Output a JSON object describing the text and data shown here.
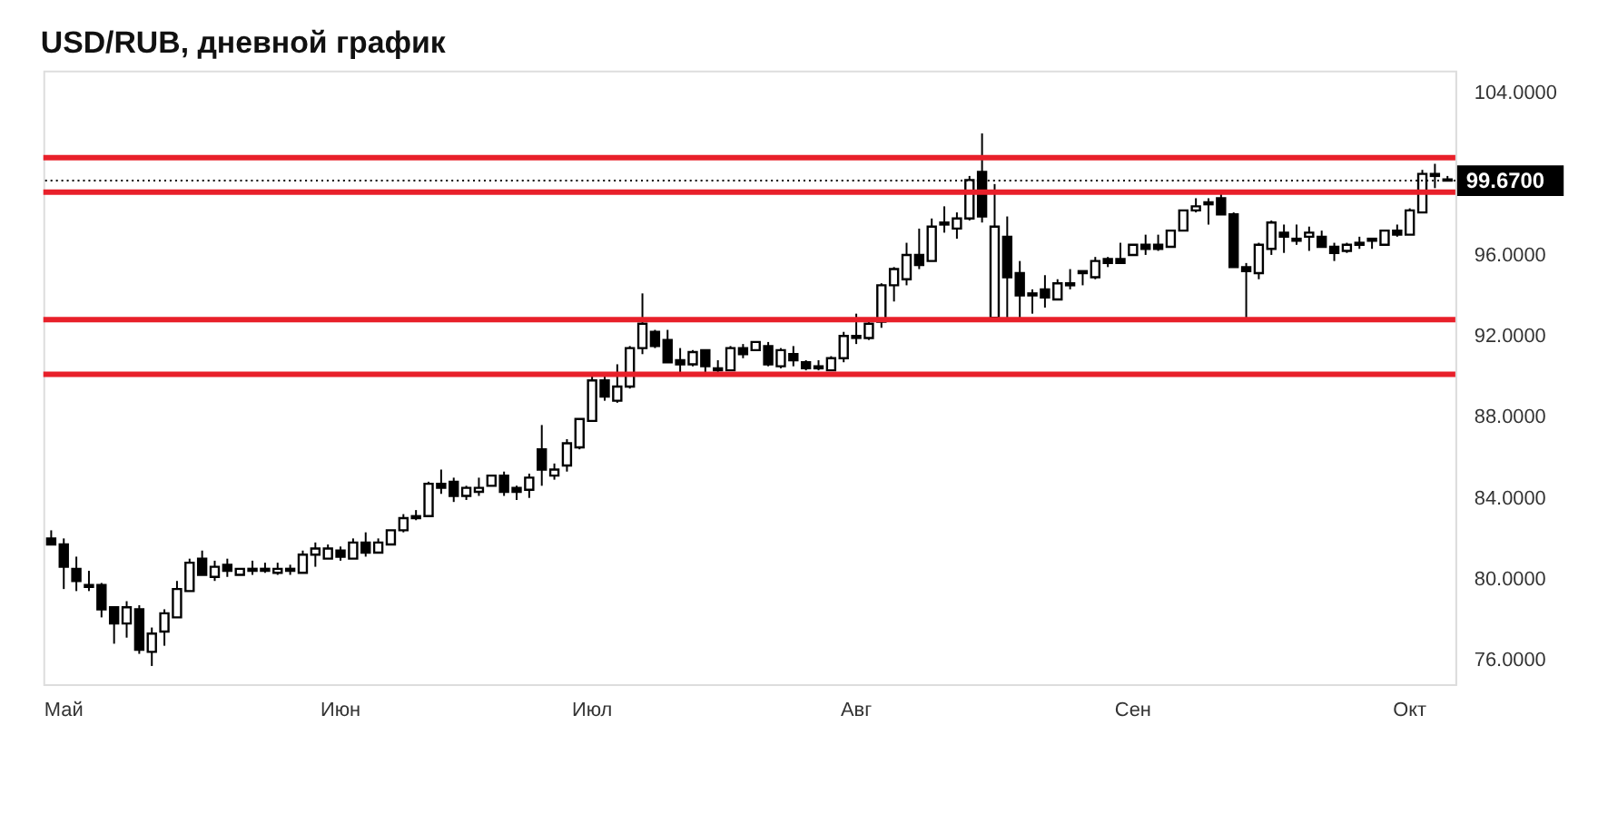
{
  "chart_data": {
    "type": "candlestick",
    "title": "USD/RUB, дневной график",
    "categories": [
      null,
      "Май",
      null,
      null,
      null,
      null,
      null,
      null,
      null,
      null,
      null,
      null,
      null,
      null,
      null,
      null,
      null,
      null,
      null,
      null,
      null,
      null,
      null,
      "Июн",
      null,
      null,
      null,
      null,
      null,
      null,
      null,
      null,
      null,
      null,
      null,
      null,
      null,
      null,
      null,
      null,
      null,
      null,
      null,
      "Июл",
      null,
      null,
      null,
      null,
      null,
      null,
      null,
      null,
      null,
      null,
      null,
      null,
      null,
      null,
      null,
      null,
      null,
      null,
      null,
      null,
      "Авг",
      null,
      null,
      null,
      null,
      null,
      null,
      null,
      null,
      null,
      null,
      null,
      null,
      null,
      null,
      null,
      null,
      null,
      null,
      null,
      null,
      null,
      "Сен",
      null,
      null,
      null,
      null,
      null,
      null,
      null,
      null,
      null,
      null,
      null,
      null,
      null,
      null,
      null,
      null,
      null,
      null,
      null,
      null,
      null,
      "Окт",
      null,
      null,
      null
    ],
    "series": [
      {
        "color": "#000000",
        "ohlc": [
          [
            82.0,
            82.4,
            81.7,
            81.7
          ],
          [
            81.7,
            82.0,
            79.5,
            80.6
          ],
          [
            80.5,
            81.1,
            79.4,
            79.9
          ],
          [
            79.7,
            80.4,
            79.4,
            79.6
          ],
          [
            79.7,
            79.8,
            78.1,
            78.5
          ],
          [
            78.6,
            78.6,
            76.8,
            77.8
          ],
          [
            77.8,
            78.9,
            77.1,
            78.6
          ],
          [
            78.5,
            78.7,
            76.3,
            76.5
          ],
          [
            76.4,
            77.6,
            75.7,
            77.3
          ],
          [
            77.4,
            78.5,
            76.7,
            78.3
          ],
          [
            78.1,
            79.9,
            78.1,
            79.5
          ],
          [
            79.4,
            81.0,
            79.4,
            80.8
          ],
          [
            81.0,
            81.4,
            80.2,
            80.2
          ],
          [
            80.1,
            80.9,
            79.9,
            80.6
          ],
          [
            80.7,
            81.0,
            80.1,
            80.4
          ],
          [
            80.2,
            80.5,
            80.2,
            80.5
          ],
          [
            80.4,
            80.9,
            80.2,
            80.5
          ],
          [
            80.4,
            80.8,
            80.3,
            80.5
          ],
          [
            80.3,
            80.8,
            80.2,
            80.5
          ],
          [
            80.5,
            80.7,
            80.2,
            80.4
          ],
          [
            80.3,
            81.4,
            80.3,
            81.2
          ],
          [
            81.2,
            81.8,
            80.6,
            81.5
          ],
          [
            81.0,
            81.7,
            81.0,
            81.5
          ],
          [
            81.4,
            81.6,
            80.9,
            81.1
          ],
          [
            81.0,
            82.0,
            81.0,
            81.8
          ],
          [
            81.8,
            82.3,
            81.1,
            81.3
          ],
          [
            81.3,
            82.0,
            81.3,
            81.8
          ],
          [
            81.7,
            82.4,
            81.7,
            82.4
          ],
          [
            82.4,
            83.2,
            82.3,
            83.0
          ],
          [
            83.0,
            83.4,
            82.9,
            83.1
          ],
          [
            83.1,
            84.8,
            83.1,
            84.7
          ],
          [
            84.7,
            85.4,
            84.2,
            84.5
          ],
          [
            84.8,
            85.0,
            83.8,
            84.1
          ],
          [
            84.1,
            84.6,
            83.9,
            84.5
          ],
          [
            84.3,
            85.0,
            84.1,
            84.5
          ],
          [
            84.6,
            85.1,
            84.6,
            85.1
          ],
          [
            85.1,
            85.3,
            84.1,
            84.3
          ],
          [
            84.5,
            84.6,
            83.9,
            84.3
          ],
          [
            84.4,
            85.2,
            84.0,
            85.0
          ],
          [
            86.4,
            87.6,
            84.6,
            85.4
          ],
          [
            85.1,
            85.7,
            84.9,
            85.4
          ],
          [
            85.6,
            86.9,
            85.3,
            86.7
          ],
          [
            86.5,
            87.9,
            86.4,
            87.9
          ],
          [
            87.8,
            90.1,
            87.8,
            89.8
          ],
          [
            89.8,
            90.0,
            88.8,
            89.0
          ],
          [
            88.8,
            90.6,
            88.7,
            89.5
          ],
          [
            89.5,
            91.5,
            89.4,
            91.4
          ],
          [
            91.4,
            94.1,
            91.1,
            92.6
          ],
          [
            92.2,
            92.3,
            91.4,
            91.5
          ],
          [
            91.8,
            92.3,
            90.7,
            90.7
          ],
          [
            90.8,
            91.4,
            90.2,
            90.6
          ],
          [
            90.6,
            91.3,
            90.5,
            91.2
          ],
          [
            91.3,
            91.3,
            90.1,
            90.5
          ],
          [
            90.3,
            90.8,
            90.2,
            90.4
          ],
          [
            90.3,
            91.5,
            90.3,
            91.4
          ],
          [
            91.4,
            91.6,
            90.9,
            91.1
          ],
          [
            91.3,
            91.7,
            91.3,
            91.7
          ],
          [
            91.5,
            91.7,
            90.5,
            90.6
          ],
          [
            90.5,
            91.4,
            90.4,
            91.3
          ],
          [
            91.1,
            91.5,
            90.5,
            90.8
          ],
          [
            90.7,
            90.8,
            90.3,
            90.4
          ],
          [
            90.5,
            90.8,
            90.3,
            90.4
          ],
          [
            90.3,
            91.0,
            90.3,
            90.9
          ],
          [
            90.9,
            92.2,
            90.7,
            92.0
          ],
          [
            92.0,
            93.1,
            91.6,
            91.9
          ],
          [
            91.9,
            92.8,
            91.8,
            92.6
          ],
          [
            92.7,
            94.6,
            92.4,
            94.5
          ],
          [
            94.5,
            95.4,
            93.7,
            95.3
          ],
          [
            94.8,
            96.6,
            94.5,
            96.0
          ],
          [
            96.0,
            97.3,
            95.3,
            95.5
          ],
          [
            95.7,
            97.8,
            95.7,
            97.4
          ],
          [
            97.6,
            98.4,
            97.1,
            97.5
          ],
          [
            97.3,
            98.1,
            96.8,
            97.8
          ],
          [
            97.8,
            99.9,
            97.7,
            99.7
          ],
          [
            100.1,
            102.0,
            97.6,
            97.9
          ],
          [
            92.9,
            99.5,
            92.9,
            97.4
          ],
          [
            96.9,
            97.9,
            92.8,
            94.9
          ],
          [
            95.1,
            95.7,
            92.9,
            94.0
          ],
          [
            94.0,
            94.3,
            93.1,
            94.1
          ],
          [
            94.3,
            95.0,
            93.4,
            93.9
          ],
          [
            93.8,
            94.8,
            93.8,
            94.6
          ],
          [
            94.5,
            95.3,
            94.3,
            94.6
          ],
          [
            95.1,
            95.2,
            94.5,
            95.2
          ],
          [
            94.9,
            95.9,
            94.8,
            95.7
          ],
          [
            95.8,
            95.9,
            95.4,
            95.6
          ],
          [
            95.8,
            96.6,
            95.6,
            95.6
          ],
          [
            96.0,
            96.5,
            96.0,
            96.5
          ],
          [
            96.5,
            97.0,
            96.0,
            96.3
          ],
          [
            96.5,
            97.0,
            96.2,
            96.3
          ],
          [
            96.4,
            97.2,
            96.4,
            97.2
          ],
          [
            97.2,
            98.2,
            97.2,
            98.2
          ],
          [
            98.2,
            98.8,
            98.1,
            98.4
          ],
          [
            98.6,
            98.8,
            97.5,
            98.5
          ],
          [
            98.8,
            99.0,
            98.0,
            98.0
          ],
          [
            98.0,
            98.1,
            95.4,
            95.4
          ],
          [
            95.4,
            95.6,
            92.9,
            95.2
          ],
          [
            95.1,
            96.6,
            94.8,
            96.5
          ],
          [
            96.3,
            97.7,
            96.0,
            97.6
          ],
          [
            97.1,
            97.5,
            96.1,
            96.9
          ],
          [
            96.7,
            97.5,
            96.5,
            96.8
          ],
          [
            96.9,
            97.4,
            96.2,
            97.1
          ],
          [
            96.9,
            97.2,
            96.4,
            96.4
          ],
          [
            96.4,
            96.6,
            95.7,
            96.1
          ],
          [
            96.2,
            96.6,
            96.1,
            96.5
          ],
          [
            96.6,
            96.9,
            96.3,
            96.5
          ],
          [
            96.8,
            96.8,
            96.3,
            96.7
          ],
          [
            96.5,
            97.2,
            96.5,
            97.2
          ],
          [
            97.2,
            97.5,
            96.9,
            97.0
          ],
          [
            97.0,
            98.3,
            97.0,
            98.2
          ],
          [
            98.1,
            100.2,
            98.1,
            100.0
          ],
          [
            99.9,
            100.5,
            99.3,
            100.0
          ],
          [
            99.73,
            99.9,
            99.67,
            99.67
          ]
        ]
      }
    ],
    "ylim": [
      74.8,
      105.1
    ],
    "yticks": [
      {
        "value": 76,
        "label": "76.0000"
      },
      {
        "value": 80,
        "label": "80.0000"
      },
      {
        "value": 84,
        "label": "84.0000"
      },
      {
        "value": 88,
        "label": "88.0000"
      },
      {
        "value": 92,
        "label": "92.0000"
      },
      {
        "value": 96,
        "label": "96.0000"
      },
      {
        "value": 104,
        "label": "104.0000"
      }
    ],
    "ref_lines": [
      {
        "axis": "y",
        "value": 99.67,
        "label": "99.6700",
        "color": "#000000",
        "line_style": "dotted"
      },
      {
        "axis": "y",
        "value": 100.8,
        "color": "#e8202a",
        "line_style": "solid"
      },
      {
        "axis": "y",
        "value": 99.1,
        "color": "#e8202a",
        "line_style": "solid"
      },
      {
        "axis": "y",
        "value": 92.8,
        "color": "#e8202a",
        "line_style": "solid"
      },
      {
        "axis": "y",
        "value": 90.1,
        "color": "#e8202a",
        "line_style": "solid"
      }
    ],
    "grid": false
  }
}
